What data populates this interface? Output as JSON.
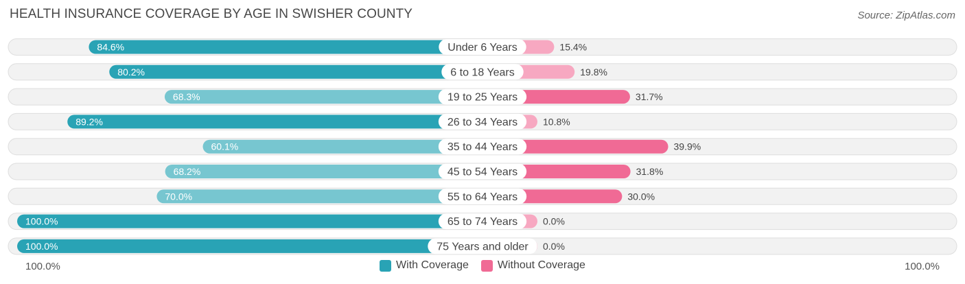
{
  "title": "HEALTH INSURANCE COVERAGE BY AGE IN SWISHER COUNTY",
  "source": "Source: ZipAtlas.com",
  "colors": {
    "with_strong": "#29a3b5",
    "with_light": "#77c6d0",
    "without_strong": "#f06a95",
    "without_light": "#f7a8c1",
    "track": "#f2f2f2",
    "track_border": "#dedede"
  },
  "chart_data": {
    "type": "bar",
    "orientation": "horizontal-diverging",
    "categories": [
      "Under 6 Years",
      "6 to 18 Years",
      "19 to 25 Years",
      "26 to 34 Years",
      "35 to 44 Years",
      "45 to 54 Years",
      "55 to 64 Years",
      "65 to 74 Years",
      "75 Years and older"
    ],
    "series": [
      {
        "name": "With Coverage",
        "values": [
          84.6,
          80.2,
          68.3,
          89.2,
          60.1,
          68.2,
          70.0,
          100.0,
          100.0
        ],
        "labels": [
          "84.6%",
          "80.2%",
          "68.3%",
          "89.2%",
          "60.1%",
          "68.2%",
          "70.0%",
          "100.0%",
          "100.0%"
        ]
      },
      {
        "name": "Without Coverage",
        "values": [
          15.4,
          19.8,
          31.7,
          10.8,
          39.9,
          31.8,
          30.0,
          0.0,
          0.0
        ],
        "labels": [
          "15.4%",
          "19.8%",
          "31.7%",
          "10.8%",
          "39.9%",
          "31.8%",
          "30.0%",
          "0.0%",
          "0.0%"
        ]
      }
    ],
    "xlim": [
      -100,
      100
    ],
    "axis_left_label": "100.0%",
    "axis_right_label": "100.0%",
    "legend_position": "bottom-center"
  }
}
